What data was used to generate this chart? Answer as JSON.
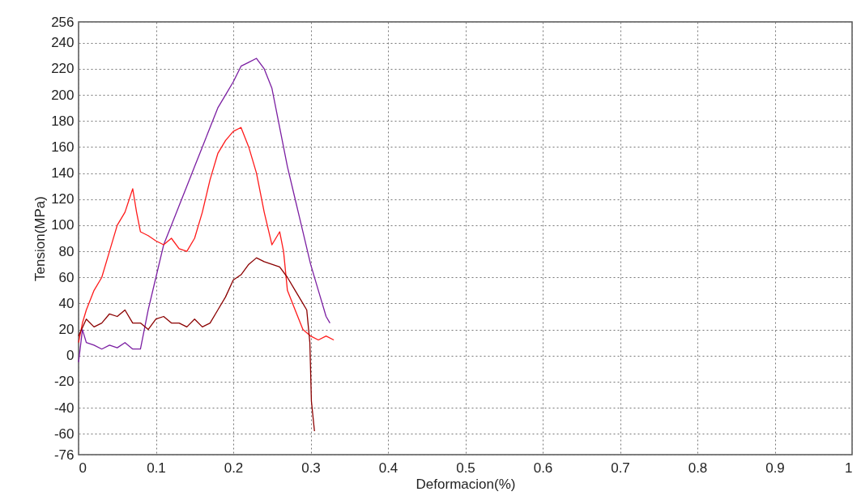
{
  "chart_data": {
    "type": "line",
    "xlabel": "Deformacion(%)",
    "ylabel": "Tension(MPa)",
    "xlim": [
      0,
      1
    ],
    "xticks": [
      0,
      0.1,
      0.2,
      0.3,
      0.4,
      0.5,
      0.6,
      0.7,
      0.8,
      0.9,
      1
    ],
    "ylim": [
      -76,
      256
    ],
    "yticks": [
      -76,
      -60,
      -40,
      -20,
      0,
      20,
      40,
      60,
      80,
      100,
      120,
      140,
      160,
      180,
      200,
      220,
      240,
      256
    ],
    "grid": true,
    "legend": false,
    "marker": "none",
    "line_style": "solid",
    "series": [
      {
        "color": "#7b1fa2",
        "x": [
          0,
          0.005,
          0.01,
          0.02,
          0.03,
          0.04,
          0.05,
          0.06,
          0.07,
          0.08,
          0.085,
          0.09,
          0.1,
          0.11,
          0.12,
          0.13,
          0.14,
          0.15,
          0.16,
          0.17,
          0.18,
          0.19,
          0.2,
          0.21,
          0.22,
          0.23,
          0.24,
          0.25,
          0.26,
          0.27,
          0.28,
          0.29,
          0.3,
          0.31,
          0.32,
          0.325
        ],
        "values": [
          -5,
          20,
          10,
          8,
          5,
          8,
          6,
          10,
          5,
          5,
          20,
          35,
          60,
          85,
          100,
          115,
          130,
          145,
          160,
          175,
          190,
          200,
          210,
          222,
          225,
          228,
          220,
          205,
          175,
          145,
          120,
          95,
          70,
          50,
          30,
          25
        ]
      },
      {
        "color": "#ff1a1a",
        "x": [
          0,
          0.005,
          0.01,
          0.02,
          0.03,
          0.04,
          0.05,
          0.06,
          0.07,
          0.075,
          0.08,
          0.09,
          0.1,
          0.11,
          0.12,
          0.13,
          0.14,
          0.15,
          0.16,
          0.17,
          0.18,
          0.19,
          0.2,
          0.21,
          0.22,
          0.23,
          0.24,
          0.25,
          0.26,
          0.265,
          0.27,
          0.28,
          0.29,
          0.3,
          0.31,
          0.32,
          0.33
        ],
        "values": [
          10,
          25,
          35,
          50,
          60,
          80,
          100,
          110,
          128,
          110,
          95,
          92,
          88,
          85,
          90,
          82,
          80,
          90,
          110,
          135,
          155,
          165,
          172,
          175,
          160,
          140,
          110,
          85,
          95,
          80,
          50,
          35,
          20,
          15,
          12,
          15,
          12
        ]
      },
      {
        "color": "#8b0000",
        "x": [
          0,
          0.01,
          0.02,
          0.03,
          0.04,
          0.05,
          0.06,
          0.07,
          0.08,
          0.09,
          0.1,
          0.11,
          0.12,
          0.13,
          0.14,
          0.15,
          0.16,
          0.17,
          0.18,
          0.19,
          0.2,
          0.21,
          0.22,
          0.23,
          0.24,
          0.25,
          0.26,
          0.27,
          0.28,
          0.29,
          0.295,
          0.299,
          0.301,
          0.305
        ],
        "values": [
          15,
          28,
          22,
          25,
          32,
          30,
          35,
          25,
          25,
          20,
          28,
          30,
          25,
          25,
          22,
          28,
          22,
          25,
          35,
          45,
          58,
          62,
          70,
          75,
          72,
          70,
          68,
          60,
          50,
          40,
          35,
          10,
          -35,
          -58
        ]
      }
    ]
  }
}
